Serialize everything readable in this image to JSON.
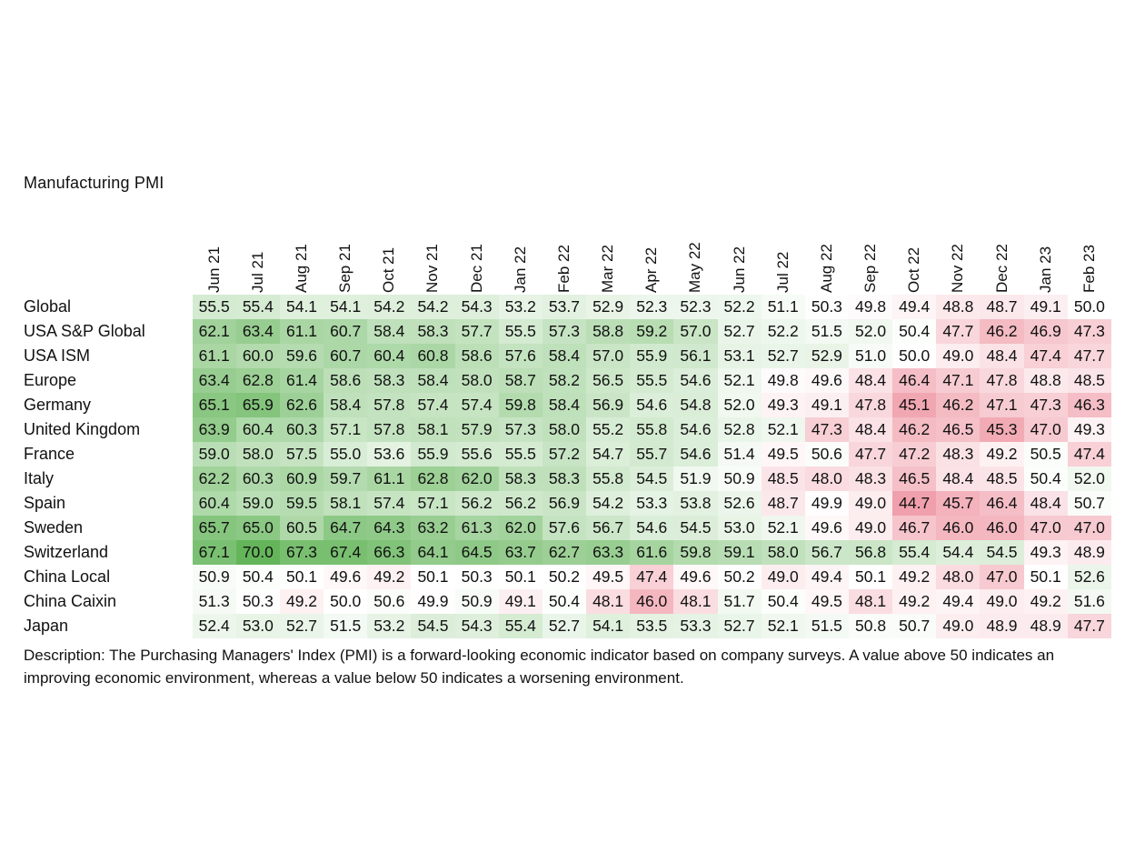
{
  "chart_data": {
    "type": "heatmap",
    "title": "Manufacturing PMI",
    "columns": [
      "Jun 21",
      "Jul 21",
      "Aug 21",
      "Sep 21",
      "Oct 21",
      "Nov 21",
      "Dec 21",
      "Jan 22",
      "Feb 22",
      "Mar 22",
      "Apr 22",
      "May 22",
      "Jun 22",
      "Jul 22",
      "Aug 22",
      "Sep 22",
      "Oct 22",
      "Nov 22",
      "Dec 22",
      "Jan 23",
      "Feb 23"
    ],
    "rows": [
      {
        "name": "Global",
        "values": [
          "55.5",
          "55.4",
          "54.1",
          "54.1",
          "54.2",
          "54.2",
          "54.3",
          "53.2",
          "53.7",
          "52.9",
          "52.3",
          "52.3",
          "52.2",
          "51.1",
          "50.3",
          "49.8",
          "49.4",
          "48.8",
          "48.7",
          "49.1",
          "50.0"
        ]
      },
      {
        "name": "USA S&P Global",
        "values": [
          "62.1",
          "63.4",
          "61.1",
          "60.7",
          "58.4",
          "58.3",
          "57.7",
          "55.5",
          "57.3",
          "58.8",
          "59.2",
          "57.0",
          "52.7",
          "52.2",
          "51.5",
          "52.0",
          "50.4",
          "47.7",
          "46.2",
          "46.9",
          "47.3"
        ]
      },
      {
        "name": "USA ISM",
        "values": [
          "61.1",
          "60.0",
          "59.6",
          "60.7",
          "60.4",
          "60.8",
          "58.6",
          "57.6",
          "58.4",
          "57.0",
          "55.9",
          "56.1",
          "53.1",
          "52.7",
          "52.9",
          "51.0",
          "50.0",
          "49.0",
          "48.4",
          "47.4",
          "47.7"
        ]
      },
      {
        "name": "Europe",
        "values": [
          "63.4",
          "62.8",
          "61.4",
          "58.6",
          "58.3",
          "58.4",
          "58.0",
          "58.7",
          "58.2",
          "56.5",
          "55.5",
          "54.6",
          "52.1",
          "49.8",
          "49.6",
          "48.4",
          "46.4",
          "47.1",
          "47.8",
          "48.8",
          "48.5"
        ]
      },
      {
        "name": "Germany",
        "values": [
          "65.1",
          "65.9",
          "62.6",
          "58.4",
          "57.8",
          "57.4",
          "57.4",
          "59.8",
          "58.4",
          "56.9",
          "54.6",
          "54.8",
          "52.0",
          "49.3",
          "49.1",
          "47.8",
          "45.1",
          "46.2",
          "47.1",
          "47.3",
          "46.3"
        ]
      },
      {
        "name": "United Kingdom",
        "values": [
          "63.9",
          "60.4",
          "60.3",
          "57.1",
          "57.8",
          "58.1",
          "57.9",
          "57.3",
          "58.0",
          "55.2",
          "55.8",
          "54.6",
          "52.8",
          "52.1",
          "47.3",
          "48.4",
          "46.2",
          "46.5",
          "45.3",
          "47.0",
          "49.3"
        ]
      },
      {
        "name": "France",
        "values": [
          "59.0",
          "58.0",
          "57.5",
          "55.0",
          "53.6",
          "55.9",
          "55.6",
          "55.5",
          "57.2",
          "54.7",
          "55.7",
          "54.6",
          "51.4",
          "49.5",
          "50.6",
          "47.7",
          "47.2",
          "48.3",
          "49.2",
          "50.5",
          "47.4"
        ]
      },
      {
        "name": "Italy",
        "values": [
          "62.2",
          "60.3",
          "60.9",
          "59.7",
          "61.1",
          "62.8",
          "62.0",
          "58.3",
          "58.3",
          "55.8",
          "54.5",
          "51.9",
          "50.9",
          "48.5",
          "48.0",
          "48.3",
          "46.5",
          "48.4",
          "48.5",
          "50.4",
          "52.0"
        ]
      },
      {
        "name": "Spain",
        "values": [
          "60.4",
          "59.0",
          "59.5",
          "58.1",
          "57.4",
          "57.1",
          "56.2",
          "56.2",
          "56.9",
          "54.2",
          "53.3",
          "53.8",
          "52.6",
          "48.7",
          "49.9",
          "49.0",
          "44.7",
          "45.7",
          "46.4",
          "48.4",
          "50.7"
        ]
      },
      {
        "name": "Sweden",
        "values": [
          "65.7",
          "65.0",
          "60.5",
          "64.7",
          "64.3",
          "63.2",
          "61.3",
          "62.0",
          "57.6",
          "56.7",
          "54.6",
          "54.5",
          "53.0",
          "52.1",
          "49.6",
          "49.0",
          "46.7",
          "46.0",
          "46.0",
          "47.0",
          "47.0"
        ]
      },
      {
        "name": "Switzerland",
        "values": [
          "67.1",
          "70.0",
          "67.3",
          "67.4",
          "66.3",
          "64.1",
          "64.5",
          "63.7",
          "62.7",
          "63.3",
          "61.6",
          "59.8",
          "59.1",
          "58.0",
          "56.7",
          "56.8",
          "55.4",
          "54.4",
          "54.5",
          "49.3",
          "48.9"
        ]
      },
      {
        "name": "China Local",
        "values": [
          "50.9",
          "50.4",
          "50.1",
          "49.6",
          "49.2",
          "50.1",
          "50.3",
          "50.1",
          "50.2",
          "49.5",
          "47.4",
          "49.6",
          "50.2",
          "49.0",
          "49.4",
          "50.1",
          "49.2",
          "48.0",
          "47.0",
          "50.1",
          "52.6"
        ]
      },
      {
        "name": "China Caixin",
        "values": [
          "51.3",
          "50.3",
          "49.2",
          "50.0",
          "50.6",
          "49.9",
          "50.9",
          "49.1",
          "50.4",
          "48.1",
          "46.0",
          "48.1",
          "51.7",
          "50.4",
          "49.5",
          "48.1",
          "49.2",
          "49.4",
          "49.0",
          "49.2",
          "51.6"
        ]
      },
      {
        "name": "Japan",
        "values": [
          "52.4",
          "53.0",
          "52.7",
          "51.5",
          "53.2",
          "54.5",
          "54.3",
          "55.4",
          "52.7",
          "54.1",
          "53.5",
          "53.3",
          "52.7",
          "52.1",
          "51.5",
          "50.8",
          "50.7",
          "49.0",
          "48.9",
          "48.9",
          "47.7"
        ]
      }
    ],
    "midpoint": 50,
    "color_scale": {
      "high_color": "#64b55a",
      "mid_color": "#ffffff",
      "low_color": "#f0a0ac"
    }
  },
  "description": "Description: The Purchasing Managers' Index (PMI) is a forward-looking economic indicator based on company surveys. A value above 50 indicates an improving economic environment, whereas a value below 50 indicates a worsening environment."
}
